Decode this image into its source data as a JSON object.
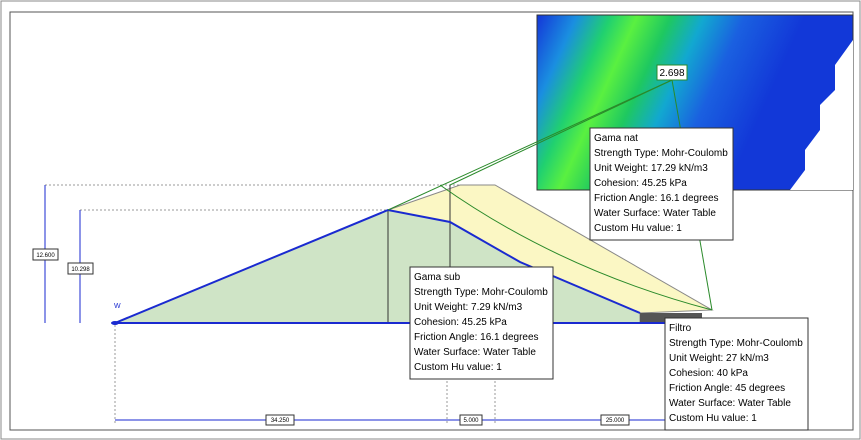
{
  "dimensions": {
    "height_total": "12.600",
    "height_water": "10.298",
    "base_left": "34.250",
    "crest": "5.000",
    "base_right": "25.000"
  },
  "water_marker": "W",
  "inset": {
    "safety_factor": "2.698"
  },
  "materials": [
    {
      "title": "Gama nat",
      "lines": [
        "Strength Type: Mohr-Coulomb",
        "Unit Weight: 17.29 kN/m3",
        "Cohesion: 45.25 kPa",
        "Friction Angle: 16.1 degrees",
        "Water Surface: Water Table",
        "Custom Hu value: 1"
      ]
    },
    {
      "title": "Gama sub",
      "lines": [
        "Strength Type: Mohr-Coulomb",
        "Unit Weight: 7.29 kN/m3",
        "Cohesion: 45.25 kPa",
        "Friction Angle: 16.1 degrees",
        "Water Surface: Water Table",
        "Custom Hu value: 1"
      ]
    },
    {
      "title": "Filtro",
      "lines": [
        "Strength Type: Mohr-Coulomb",
        "Unit Weight: 27 kN/m3",
        "Cohesion: 40 kPa",
        "Friction Angle: 45 degrees",
        "Water Surface: Water Table",
        "Custom Hu value: 1"
      ]
    }
  ]
}
